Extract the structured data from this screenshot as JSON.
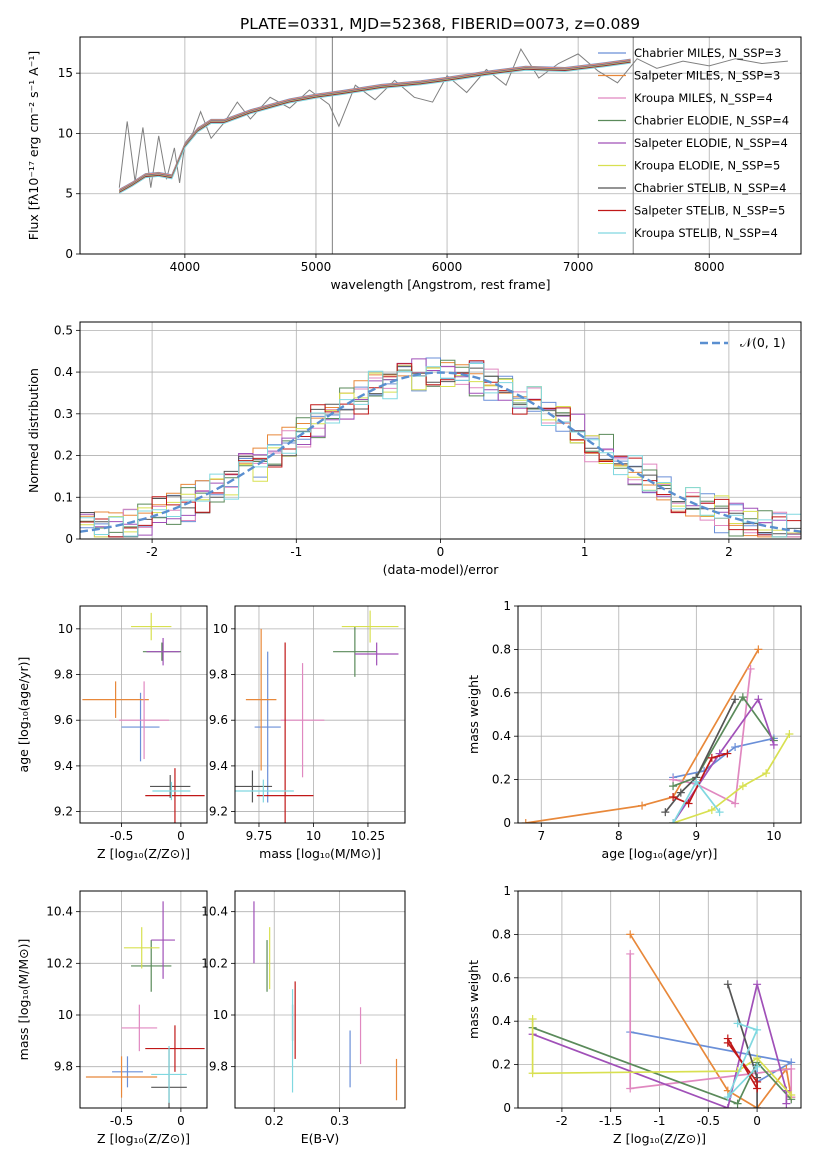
{
  "title": "PLATE=0331, MJD=52368, FIBERID=0073, z=0.089",
  "colors": [
    "#6a8fd8",
    "#e8883a",
    "#e088c0",
    "#5a8a5a",
    "#a050b8",
    "#d8e050",
    "#555555",
    "#c01818",
    "#80d8e0"
  ],
  "chart_data": [
    {
      "id": "spectrum",
      "type": "line",
      "xlabel": "wavelength [Angstrom, rest frame]",
      "ylabel": "Flux [fλ10⁻¹⁷ erg cm⁻² s⁻¹ A⁻¹]",
      "xlim": [
        3200,
        8700
      ],
      "ylim": [
        0,
        18
      ],
      "xticks": [
        4000,
        5000,
        6000,
        7000,
        8000
      ],
      "yticks": [
        0,
        5,
        10,
        15
      ],
      "legend_position": "right",
      "legend": [
        "Chabrier MILES, N_SSP=3",
        "Salpeter MILES, N_SSP=3",
        "Kroupa MILES, N_SSP=4",
        "Chabrier ELODIE, N_SSP=4",
        "Salpeter ELODIE, N_SSP=4",
        "Kroupa ELODIE, N_SSP=5",
        "Chabrier STELIB, N_SSP=4",
        "Salpeter STELIB, N_SSP=5",
        "Kroupa STELIB, N_SSP=4"
      ],
      "model_x": [
        3500,
        3600,
        3700,
        3800,
        3900,
        4000,
        4100,
        4200,
        4300,
        4500,
        4800,
        5000,
        5200,
        5500,
        5800,
        6000,
        6300,
        6600,
        6900,
        7200,
        7400
      ],
      "model_y": [
        5.2,
        5.8,
        6.5,
        6.6,
        6.4,
        9.0,
        10.3,
        11.0,
        11.0,
        11.8,
        12.7,
        13.1,
        13.4,
        13.9,
        14.2,
        14.5,
        15.0,
        15.4,
        15.3,
        15.7,
        16.0
      ],
      "data_x": [
        3500,
        3560,
        3620,
        3680,
        3740,
        3800,
        3860,
        3920,
        3960,
        4000,
        4060,
        4120,
        4200,
        4300,
        4400,
        4500,
        4650,
        4800,
        4950,
        5100,
        5175,
        5300,
        5450,
        5600,
        5750,
        5890,
        6000,
        6150,
        6300,
        6450,
        6563,
        6700,
        6850,
        7000,
        7150,
        7300,
        7450,
        7600,
        7800,
        8000,
        8200,
        8400,
        8600
      ],
      "data_y": [
        5.5,
        11.0,
        6.0,
        10.5,
        5.5,
        9.8,
        6.2,
        8.8,
        5.9,
        9.2,
        10.0,
        11.8,
        9.6,
        10.9,
        12.6,
        11.2,
        13.0,
        12.1,
        13.6,
        12.4,
        10.6,
        14.0,
        12.8,
        14.4,
        13.0,
        12.6,
        14.8,
        13.4,
        15.3,
        14.0,
        17.0,
        14.6,
        15.8,
        16.6,
        15.2,
        14.2,
        16.2,
        15.4,
        16.0,
        15.6,
        16.2,
        15.8,
        16.0
      ],
      "spikes": [
        {
          "x": 5125,
          "y": 18
        },
        {
          "x": 7420,
          "y": 18
        }
      ]
    },
    {
      "id": "residuals",
      "type": "bar",
      "xlabel": "(data-model)/error",
      "ylabel": "Normed distribution",
      "xlim": [
        -2.5,
        2.5
      ],
      "ylim": [
        0,
        0.52
      ],
      "xticks": [
        -2,
        -1,
        0,
        1,
        2
      ],
      "yticks": [
        0,
        0.1,
        0.2,
        0.3,
        0.4,
        0.5
      ],
      "legend": [
        "𝒩(0, 1)"
      ],
      "legend_position": "upper right",
      "bin_width": 0.1
    },
    {
      "id": "age-vs-Z",
      "type": "scatter",
      "xlabel": "Z [log₁₀(Z/Z⊙)]",
      "ylabel": "age  [log₁₀(age/yr)]",
      "xlim": [
        -0.85,
        0.22
      ],
      "ylim": [
        9.15,
        10.1
      ],
      "xticks": [
        -0.5,
        0.0
      ],
      "yticks": [
        9.2,
        9.4,
        9.6,
        9.8,
        10.0
      ],
      "points": [
        {
          "x": -0.34,
          "y": 9.57,
          "dx": 0.16,
          "dy": 0.15
        },
        {
          "x": -0.55,
          "y": 9.69,
          "dx": 0.28,
          "dy": 0.08
        },
        {
          "x": -0.31,
          "y": 9.6,
          "dx": 0.21,
          "dy": 0.17
        },
        {
          "x": -0.16,
          "y": 9.9,
          "dx": 0.16,
          "dy": 0.04
        },
        {
          "x": -0.15,
          "y": 9.9,
          "dx": 0.14,
          "dy": 0.06
        },
        {
          "x": -0.25,
          "y": 10.01,
          "dx": 0.17,
          "dy": 0.06
        },
        {
          "x": -0.09,
          "y": 9.31,
          "dx": 0.17,
          "dy": 0.05
        },
        {
          "x": -0.05,
          "y": 9.27,
          "dx": 0.25,
          "dy": 0.12
        },
        {
          "x": -0.08,
          "y": 9.29,
          "dx": 0.16,
          "dy": 0.04
        }
      ]
    },
    {
      "id": "age-vs-mass",
      "type": "scatter",
      "xlabel": "mass [log₁₀(M/M⊙)]",
      "ylabel": "",
      "xlim": [
        9.64,
        10.42
      ],
      "ylim": [
        9.15,
        10.1
      ],
      "xticks": [
        9.75,
        10.0,
        10.25
      ],
      "yticks": [
        9.2,
        9.4,
        9.6,
        9.8,
        10.0
      ],
      "points": [
        {
          "x": 9.79,
          "y": 9.57,
          "dx": 0.06,
          "dy": 0.33
        },
        {
          "x": 9.76,
          "y": 9.69,
          "dx": 0.07,
          "dy": 0.31
        },
        {
          "x": 9.95,
          "y": 9.6,
          "dx": 0.1,
          "dy": 0.25
        },
        {
          "x": 10.19,
          "y": 9.9,
          "dx": 0.1,
          "dy": 0.11
        },
        {
          "x": 10.29,
          "y": 9.89,
          "dx": 0.1,
          "dy": 0.05
        },
        {
          "x": 10.26,
          "y": 10.01,
          "dx": 0.13,
          "dy": 0.07
        },
        {
          "x": 9.72,
          "y": 9.31,
          "dx": 0.09,
          "dy": 0.07
        },
        {
          "x": 9.87,
          "y": 9.27,
          "dx": 0.13,
          "dy": 0.67
        },
        {
          "x": 9.77,
          "y": 9.29,
          "dx": 0.14,
          "dy": 0.05
        }
      ]
    },
    {
      "id": "mass-weight-vs-age",
      "type": "line",
      "xlabel": "age  [log₁₀(age/yr)]",
      "ylabel": "mass weight",
      "xlim": [
        6.7,
        10.35
      ],
      "ylim": [
        0,
        1
      ],
      "xticks": [
        7,
        8,
        9,
        10
      ],
      "yticks": [
        0.0,
        0.2,
        0.4,
        0.6,
        0.8,
        1.0
      ],
      "series": [
        {
          "x": [
            8.7,
            9.1,
            9.5,
            10.0
          ],
          "y": [
            0.21,
            0.24,
            0.35,
            0.39
          ]
        },
        {
          "x": [
            6.8,
            8.3,
            8.7,
            9.8
          ],
          "y": [
            0.0,
            0.08,
            0.12,
            0.8
          ]
        },
        {
          "x": [
            8.7,
            9.0,
            9.5,
            9.7
          ],
          "y": [
            0.2,
            0.18,
            0.09,
            0.71
          ]
        },
        {
          "x": [
            8.7,
            9.0,
            9.6,
            10.0
          ],
          "y": [
            0.17,
            0.21,
            0.58,
            0.38
          ]
        },
        {
          "x": [
            8.7,
            9.3,
            9.8,
            10.0
          ],
          "y": [
            0.0,
            0.32,
            0.57,
            0.36
          ]
        },
        {
          "x": [
            8.7,
            9.2,
            9.6,
            9.9,
            10.2
          ],
          "y": [
            0.0,
            0.06,
            0.17,
            0.23,
            0.41
          ]
        },
        {
          "x": [
            8.6,
            8.8,
            9.0,
            9.5
          ],
          "y": [
            0.05,
            0.14,
            0.21,
            0.57
          ]
        },
        {
          "x": [
            8.7,
            8.9,
            9.2,
            9.4
          ],
          "y": [
            0.12,
            0.09,
            0.3,
            0.32
          ]
        },
        {
          "x": [
            8.7,
            9.0,
            9.3
          ],
          "y": [
            0.0,
            0.19,
            0.05
          ]
        }
      ]
    },
    {
      "id": "mass-vs-Z",
      "type": "scatter",
      "xlabel": "Z [log₁₀(Z/Z⊙)]",
      "ylabel": "mass [log₁₀(M/M⊙)]",
      "xlim": [
        -0.85,
        0.22
      ],
      "ylim": [
        9.64,
        10.48
      ],
      "xticks": [
        -0.5,
        0.0
      ],
      "yticks": [
        9.8,
        10.0,
        10.2,
        10.4
      ],
      "points": [
        {
          "x": -0.45,
          "y": 9.78,
          "dx": 0.13,
          "dy": 0.06
        },
        {
          "x": -0.5,
          "y": 9.76,
          "dx": 0.3,
          "dy": 0.08
        },
        {
          "x": -0.35,
          "y": 9.95,
          "dx": 0.15,
          "dy": 0.09
        },
        {
          "x": -0.25,
          "y": 10.19,
          "dx": 0.17,
          "dy": 0.1
        },
        {
          "x": -0.15,
          "y": 10.29,
          "dx": 0.1,
          "dy": 0.15
        },
        {
          "x": -0.33,
          "y": 10.26,
          "dx": 0.15,
          "dy": 0.08
        },
        {
          "x": -0.1,
          "y": 9.72,
          "dx": 0.15,
          "dy": 0.15
        },
        {
          "x": -0.05,
          "y": 9.87,
          "dx": 0.25,
          "dy": 0.09
        },
        {
          "x": -0.1,
          "y": 9.77,
          "dx": 0.15,
          "dy": 0.11
        }
      ]
    },
    {
      "id": "mass-vs-EBV",
      "type": "scatter",
      "xlabel": "E(B-V)",
      "ylabel": "",
      "xlim": [
        0.14,
        0.4
      ],
      "ylim": [
        9.64,
        10.48
      ],
      "xticks": [
        0.2,
        0.3
      ],
      "yticks": [
        9.8,
        10.0,
        10.2,
        10.4
      ],
      "points": [
        {
          "x": 0.316,
          "y": 9.83,
          "dx": 0,
          "dy": 0.11
        },
        {
          "x": 0.387,
          "y": 9.75,
          "dx": 0,
          "dy": 0.08
        },
        {
          "x": 0.332,
          "y": 9.92,
          "dx": 0,
          "dy": 0.11
        },
        {
          "x": 0.189,
          "y": 10.19,
          "dx": 0,
          "dy": 0.1
        },
        {
          "x": 0.169,
          "y": 10.32,
          "dx": 0,
          "dy": 0.12
        },
        {
          "x": 0.193,
          "y": 10.22,
          "dx": 0,
          "dy": 0.12
        },
        {
          "x": 0.228,
          "y": 9.97,
          "dx": 0,
          "dy": 0.07
        },
        {
          "x": 0.232,
          "y": 9.98,
          "dx": 0,
          "dy": 0.15
        },
        {
          "x": 0.228,
          "y": 9.9,
          "dx": 0,
          "dy": 0.2
        }
      ]
    },
    {
      "id": "mass-weight-vs-Z",
      "type": "line",
      "xlabel": "Z [log₁₀(Z/Z⊙)]",
      "ylabel": "mass weight",
      "xlim": [
        -2.45,
        0.45
      ],
      "ylim": [
        0,
        1
      ],
      "xticks": [
        -2.0,
        -1.5,
        -1.0,
        -0.5,
        0.0
      ],
      "yticks": [
        0.0,
        0.2,
        0.4,
        0.6,
        0.8,
        1.0
      ],
      "series": [
        {
          "x": [
            -1.3,
            0.35,
            0.0,
            0.0
          ],
          "y": [
            0.35,
            0.21,
            0.12,
            0.2
          ]
        },
        {
          "x": [
            -1.3,
            -0.3,
            0.0,
            0.3,
            0.35
          ],
          "y": [
            0.8,
            0.08,
            0.0,
            0.18,
            0.05
          ]
        },
        {
          "x": [
            -1.3,
            -1.3,
            0.35,
            0.35
          ],
          "y": [
            0.71,
            0.09,
            0.18,
            0.05
          ]
        },
        {
          "x": [
            -2.3,
            -0.2,
            0.0,
            0.35
          ],
          "y": [
            0.37,
            0.02,
            0.21,
            0.04
          ]
        },
        {
          "x": [
            -2.3,
            -0.3,
            0.0,
            0.3,
            0.3
          ],
          "y": [
            0.34,
            0.0,
            0.57,
            0.08,
            0.02
          ]
        },
        {
          "x": [
            -2.3,
            -2.3,
            -0.2,
            0.0,
            0.35
          ],
          "y": [
            0.41,
            0.16,
            0.17,
            0.23,
            0.06
          ]
        },
        {
          "x": [
            -0.3,
            0.0,
            0.0
          ],
          "y": [
            0.57,
            0.14,
            0.0
          ]
        },
        {
          "x": [
            -0.3,
            0.0,
            0.0,
            -0.3
          ],
          "y": [
            0.3,
            0.12,
            0.09,
            0.32
          ]
        },
        {
          "x": [
            -0.2,
            0.0,
            -0.3,
            0.0
          ],
          "y": [
            0.39,
            0.36,
            0.05,
            0.19
          ]
        }
      ]
    }
  ]
}
